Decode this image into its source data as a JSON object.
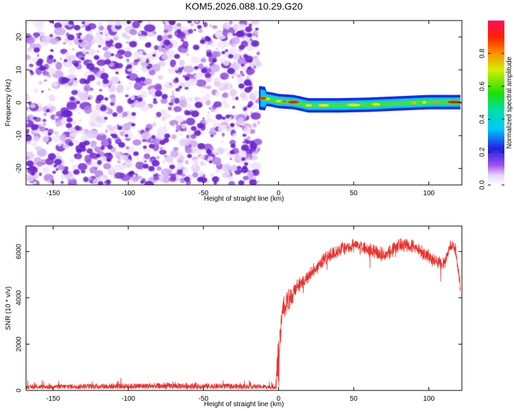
{
  "title": "KOM5.2026.088.10.29.G20",
  "chart_data": [
    {
      "type": "heatmap",
      "xlabel": "Height of straight line (km)",
      "ylabel": "Frequency (Hz)",
      "xlim": [
        -168,
        122
      ],
      "ylim": [
        -25,
        25
      ],
      "x_ticks": [
        -150,
        -100,
        -50,
        0,
        50,
        100
      ],
      "y_ticks": [
        -20,
        -10,
        0,
        10,
        20
      ],
      "colorbar": {
        "label": "Normalized spectral amplitude",
        "range": [
          0,
          1
        ],
        "ticks": [
          0.0,
          0.2,
          0.4,
          0.6,
          0.8
        ],
        "tick_labels": [
          "0.0",
          "0.2",
          "0.4",
          "0.6",
          "0.8"
        ]
      },
      "noise_region_x": [
        -168,
        -13
      ],
      "signal_band": {
        "x_start": -13,
        "x_end": 121,
        "center_freq": [
          [
            -13,
            1.5
          ],
          [
            -5,
            1.0
          ],
          [
            0,
            0.5
          ],
          [
            10,
            0.2
          ],
          [
            20,
            -0.8
          ],
          [
            40,
            -0.8
          ],
          [
            60,
            -0.6
          ],
          [
            80,
            -0.2
          ],
          [
            100,
            0.2
          ],
          [
            121,
            0.2
          ]
        ]
      }
    },
    {
      "type": "line",
      "xlabel": "Height of straight line (km)",
      "ylabel": "SNR (10 * v/v)",
      "xlim": [
        -168,
        122
      ],
      "ylim": [
        0,
        7100
      ],
      "x_ticks": [
        -150,
        -100,
        -50,
        0,
        50,
        100
      ],
      "y_ticks": [
        0,
        2000,
        4000,
        6000
      ],
      "series": [
        {
          "color": "#e8322c",
          "envelope": [
            [
              -168,
              150
            ],
            [
              -120,
              200
            ],
            [
              -60,
              220
            ],
            [
              -20,
              180
            ],
            [
              -2,
              150
            ],
            [
              0,
              2200
            ],
            [
              3,
              4000
            ],
            [
              10,
              4600
            ],
            [
              20,
              5200
            ],
            [
              30,
              5900
            ],
            [
              40,
              6300
            ],
            [
              50,
              6500
            ],
            [
              60,
              6300
            ],
            [
              70,
              6100
            ],
            [
              80,
              6500
            ],
            [
              90,
              6500
            ],
            [
              100,
              6000
            ],
            [
              110,
              5700
            ],
            [
              115,
              6600
            ],
            [
              118,
              6300
            ],
            [
              121,
              4700
            ]
          ]
        }
      ]
    }
  ]
}
